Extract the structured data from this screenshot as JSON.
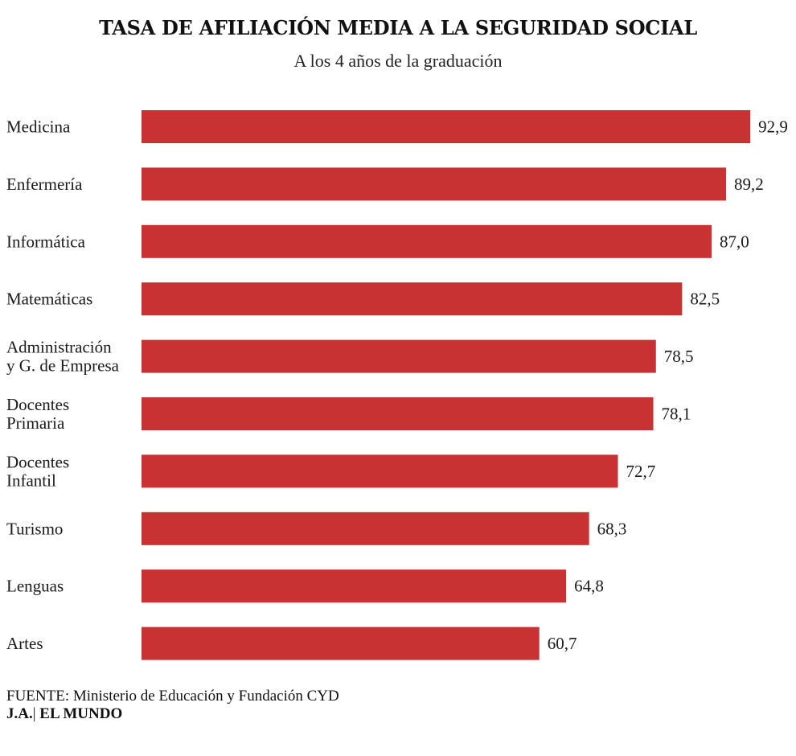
{
  "chart_data": {
    "type": "bar",
    "orientation": "horizontal",
    "title": "TASA DE AFILIACIÓN MEDIA A LA SEGURIDAD SOCIAL",
    "subtitle": "A los 4 años de la graduación",
    "categories": [
      [
        "Medicina"
      ],
      [
        "Enfermería"
      ],
      [
        "Informática"
      ],
      [
        "Matemáticas"
      ],
      [
        "Administración",
        "y G. de Empresa"
      ],
      [
        "Docentes",
        "Primaria"
      ],
      [
        "Docentes",
        "Infantil"
      ],
      [
        "Turismo"
      ],
      [
        "Lenguas"
      ],
      [
        "Artes"
      ]
    ],
    "values": [
      92.9,
      89.2,
      87.0,
      82.5,
      78.5,
      78.1,
      72.7,
      68.3,
      64.8,
      60.7
    ],
    "value_labels": [
      "92,9",
      "89,2",
      "87,0",
      "82,5",
      "78,5",
      "78,1",
      "72,7",
      "68,3",
      "64,8",
      "60,7"
    ],
    "bar_color": "#c83232",
    "xlabel": "",
    "ylabel": "",
    "grid": false,
    "legend": "none"
  },
  "footer": {
    "source_label": "FUENTE:",
    "source_text": " Ministerio de Educación y Fundación CYD",
    "credit_author": "J.A.",
    "credit_separator": "|",
    "credit_outlet": " EL MUNDO"
  }
}
